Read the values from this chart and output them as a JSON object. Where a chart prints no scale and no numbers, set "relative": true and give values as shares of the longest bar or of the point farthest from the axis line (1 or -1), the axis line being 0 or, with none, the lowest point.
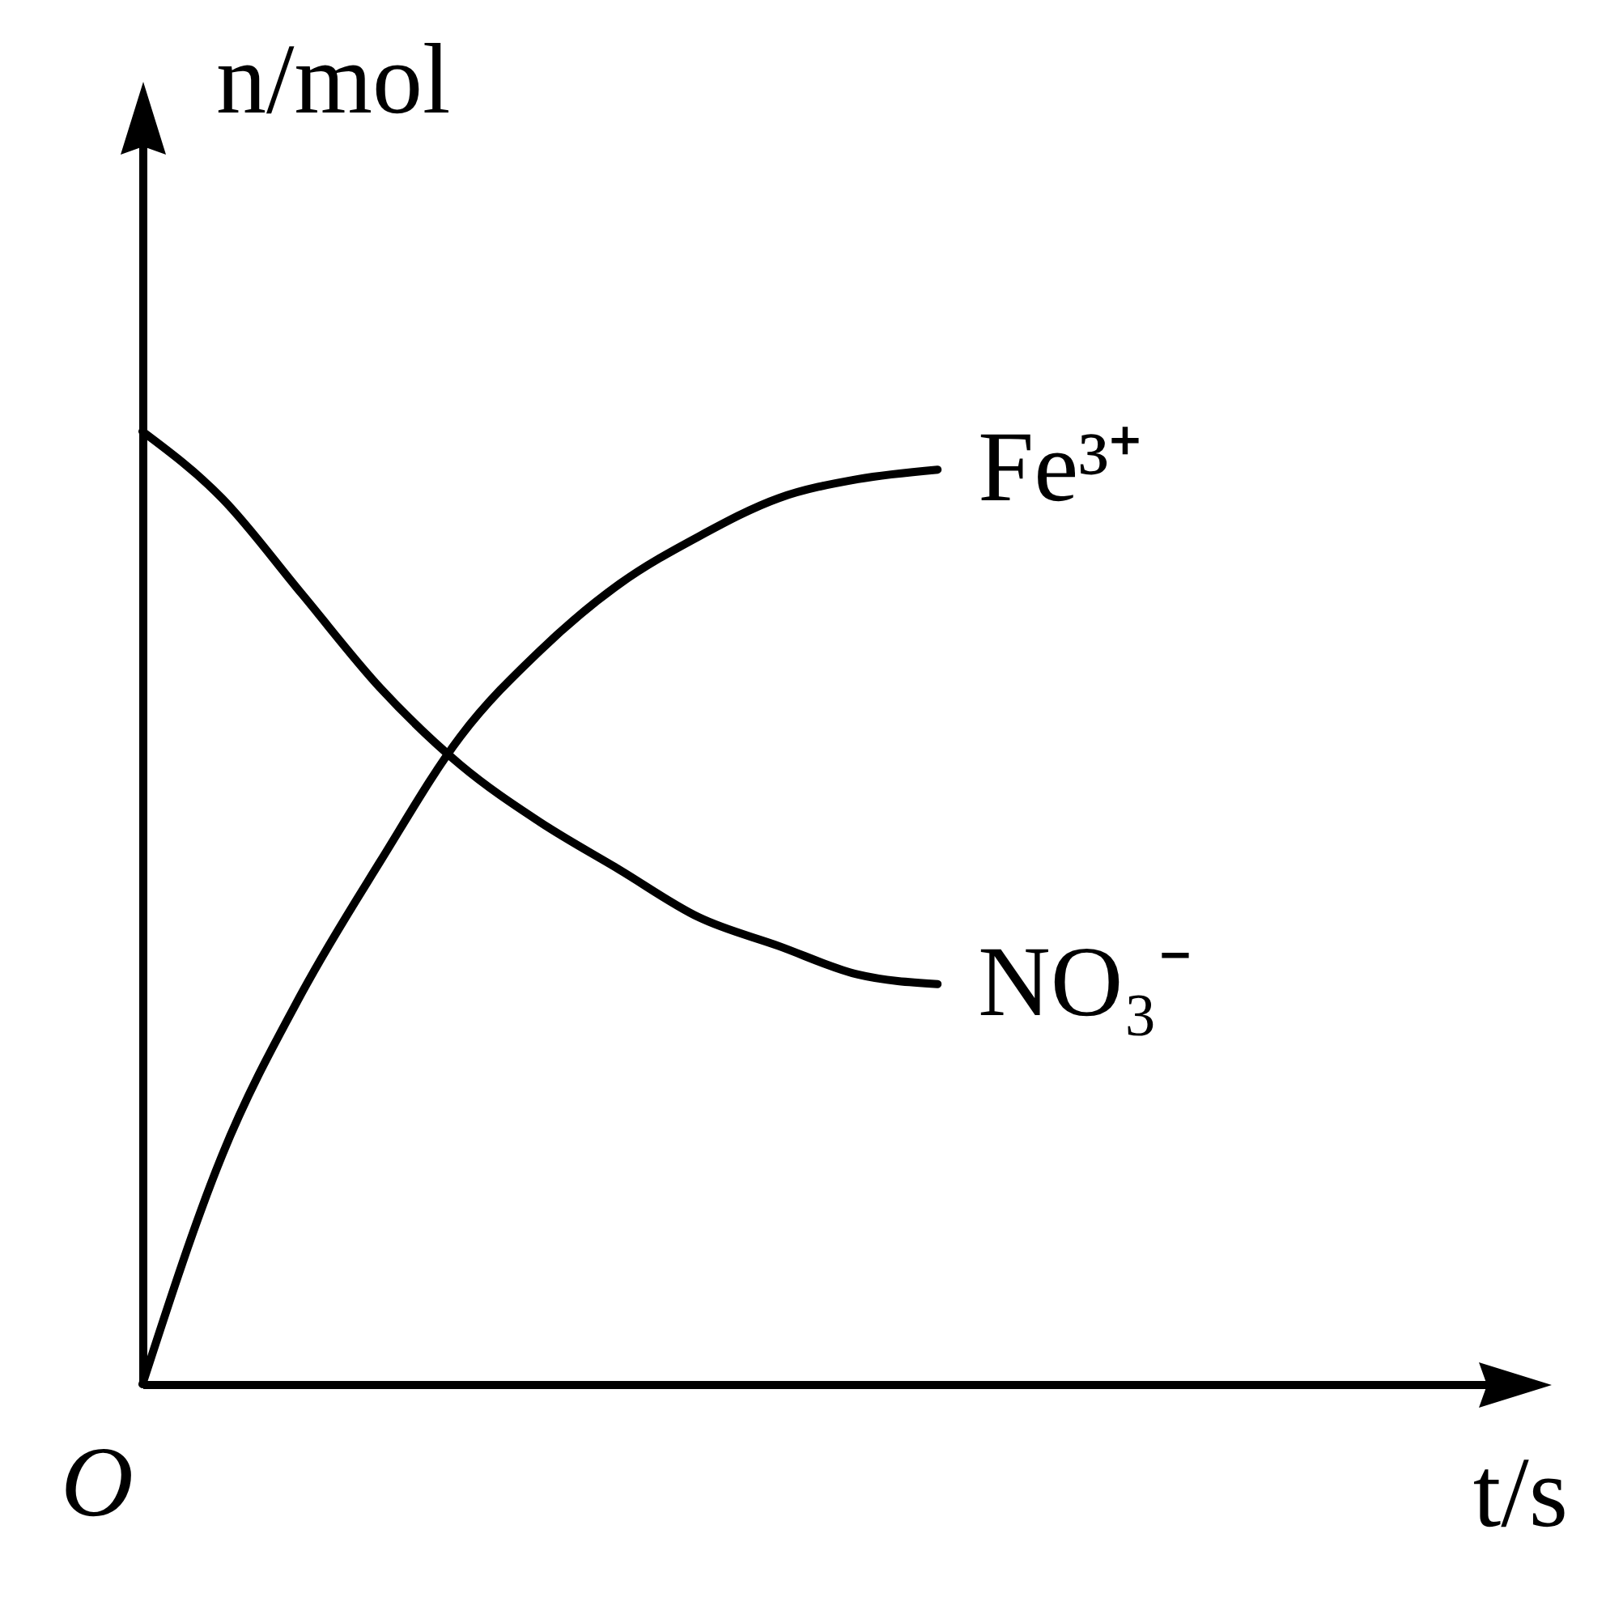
{
  "chart_data": {
    "type": "line",
    "relative": true,
    "xlabel": "t/s",
    "ylabel": "n/mol",
    "annotations": [
      "O"
    ],
    "categories": [
      null,
      null,
      null,
      null,
      null,
      null,
      null,
      null,
      null,
      null,
      null
    ],
    "series": [
      {
        "name": "Fe³⁺",
        "color": "#000000",
        "values": [
          0,
          0.24,
          0.41,
          0.55,
          0.68,
          0.77,
          0.84,
          0.89,
          0.93,
          0.95,
          0.96
        ]
      },
      {
        "name": "NO₃⁻",
        "color": "#000000",
        "values": [
          1,
          0.93,
          0.83,
          0.73,
          0.65,
          0.59,
          0.54,
          0.49,
          0.46,
          0.43,
          0.42
        ]
      }
    ],
    "grid": false,
    "legend": false
  }
}
